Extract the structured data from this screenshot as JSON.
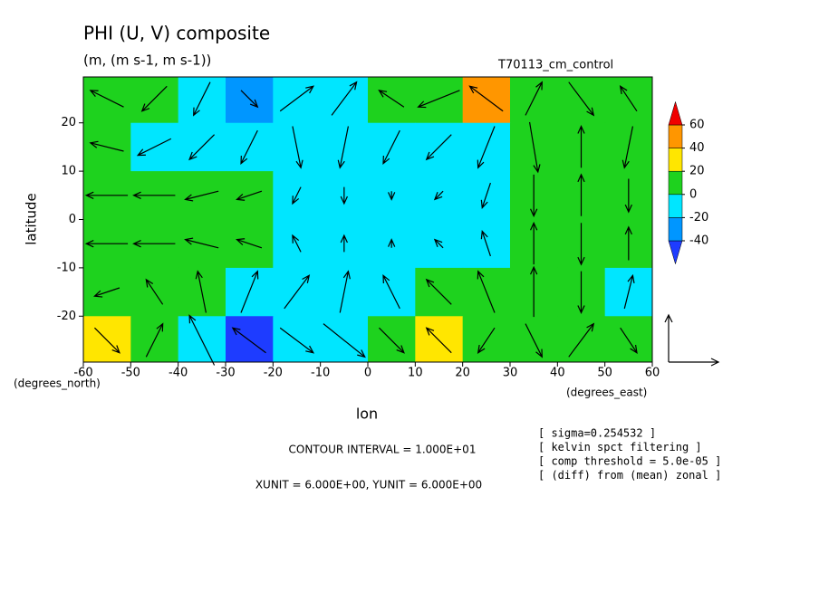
{
  "chart_data": {
    "type": "contour-vector",
    "title": "PHI (U, V) composite",
    "subtitle": "(m, (m s-1, m s-1))",
    "run": "T70113_cm_control",
    "ylabel": "latitude",
    "yunit_label": "(degrees_north)",
    "xlabel": "lon",
    "xunit_label": "(degrees_east)",
    "contour_interval": "CONTOUR INTERVAL = 1.000E+01",
    "vector_units": "XUNIT = 6.000E+00, YUNIT = 6.000E+00",
    "notes": [
      "[ sigma=0.254532 ]",
      "[ kelvin spct filtering ]",
      "[ comp threshold = 5.0e-05 ]",
      "[ (diff) from (mean) zonal ]"
    ],
    "xlim": [
      -60,
      60
    ],
    "ylim": [
      -29.5,
      29.5
    ],
    "xticks": [
      -60,
      -50,
      -40,
      -30,
      -20,
      -10,
      0,
      10,
      20,
      30,
      40,
      50,
      60
    ],
    "yticks": [
      -20,
      -10,
      0,
      10,
      20
    ],
    "lon": [
      -55,
      -45,
      -35,
      -25,
      -15,
      -5,
      5,
      15,
      25,
      35,
      45,
      55
    ],
    "lat": [
      25,
      15,
      5,
      -5,
      -15,
      -25
    ],
    "levels": [
      -40,
      -20,
      0,
      20,
      40,
      60
    ],
    "colors": [
      "#1e3cff",
      "#0096ff",
      "#00e6ff",
      "#1ed21e",
      "#ffe600",
      "#ff9600",
      "#f00000"
    ],
    "phi": [
      [
        5,
        0,
        -15,
        -35,
        -15,
        -5,
        5,
        15,
        40,
        10,
        5,
        5
      ],
      [
        5,
        -5,
        -15,
        -15,
        -10,
        -15,
        -15,
        -10,
        -5,
        5,
        5,
        5
      ],
      [
        5,
        5,
        5,
        5,
        -10,
        -15,
        -15,
        -15,
        -10,
        5,
        5,
        5
      ],
      [
        5,
        5,
        5,
        5,
        -10,
        -15,
        -15,
        -15,
        -10,
        5,
        5,
        5
      ],
      [
        5,
        5,
        5,
        -10,
        -15,
        -10,
        -5,
        5,
        5,
        5,
        5,
        -10
      ],
      [
        30,
        15,
        -5,
        -45,
        -15,
        -5,
        10,
        25,
        5,
        5,
        5,
        5
      ]
    ],
    "u": [
      [
        -4,
        -3,
        -2,
        2,
        4,
        3,
        -3,
        -5,
        -4,
        2,
        3,
        -2
      ],
      [
        -4,
        -4,
        -3,
        -2,
        1,
        -1,
        -2,
        -3,
        -2,
        1,
        0,
        -1
      ],
      [
        -5,
        -5,
        -4,
        -3,
        -1,
        0,
        0,
        -1,
        -1,
        0,
        0,
        0
      ],
      [
        -5,
        -5,
        -4,
        -3,
        -1,
        0,
        0,
        -1,
        -1,
        0,
        0,
        0
      ],
      [
        -3,
        -2,
        -1,
        2,
        3,
        1,
        -2,
        -3,
        -2,
        0,
        0,
        1
      ],
      [
        3,
        2,
        -3,
        -4,
        4,
        5,
        3,
        -3,
        -2,
        2,
        3,
        2
      ]
    ],
    "v": [
      [
        2,
        -3,
        -4,
        -2,
        3,
        4,
        2,
        -2,
        3,
        4,
        -4,
        3
      ],
      [
        1,
        -2,
        -3,
        -4,
        -5,
        -5,
        -4,
        -3,
        -5,
        -6,
        5,
        -5
      ],
      [
        0,
        0,
        -1,
        -1,
        -2,
        -2,
        -1,
        -1,
        -3,
        -5,
        5,
        -4
      ],
      [
        0,
        0,
        1,
        1,
        2,
        2,
        1,
        1,
        3,
        5,
        -5,
        4
      ],
      [
        -1,
        3,
        5,
        5,
        4,
        5,
        4,
        3,
        5,
        6,
        -5,
        4
      ],
      [
        -3,
        4,
        6,
        3,
        -3,
        -4,
        -3,
        3,
        -3,
        -4,
        4,
        -3
      ]
    ],
    "vector_scale": 6
  }
}
